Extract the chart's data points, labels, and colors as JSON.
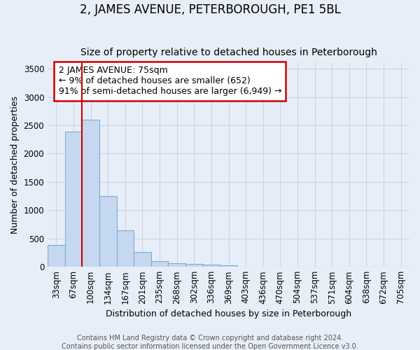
{
  "title": "2, JAMES AVENUE, PETERBOROUGH, PE1 5BL",
  "subtitle": "Size of property relative to detached houses in Peterborough",
  "xlabel": "Distribution of detached houses by size in Peterborough",
  "ylabel": "Number of detached properties",
  "footer_line1": "Contains HM Land Registry data © Crown copyright and database right 2024.",
  "footer_line2": "Contains public sector information licensed under the Open Government Licence v3.0.",
  "categories": [
    "33sqm",
    "67sqm",
    "100sqm",
    "134sqm",
    "167sqm",
    "201sqm",
    "235sqm",
    "268sqm",
    "302sqm",
    "336sqm",
    "369sqm",
    "403sqm",
    "436sqm",
    "470sqm",
    "504sqm",
    "537sqm",
    "571sqm",
    "604sqm",
    "638sqm",
    "672sqm",
    "705sqm"
  ],
  "values": [
    380,
    2390,
    2600,
    1250,
    640,
    260,
    100,
    60,
    55,
    45,
    30,
    8,
    5,
    3,
    2,
    1,
    1,
    0,
    0,
    0,
    0
  ],
  "bar_color": "#c5d8f0",
  "bar_edge_color": "#7aafd4",
  "grid_color": "#c8d4e8",
  "background_color": "#e8eef8",
  "annotation_line1": "2 JAMES AVENUE: 75sqm",
  "annotation_line2": "← 9% of detached houses are smaller (652)",
  "annotation_line3": "91% of semi-detached houses are larger (6,949) →",
  "annotation_box_color": "#ffffff",
  "annotation_border_color": "#cc0000",
  "property_line_color": "#cc0000",
  "ylim": [
    0,
    3600
  ],
  "yticks": [
    0,
    500,
    1000,
    1500,
    2000,
    2500,
    3000,
    3500
  ],
  "title_fontsize": 12,
  "subtitle_fontsize": 10,
  "xlabel_fontsize": 9,
  "ylabel_fontsize": 9,
  "tick_fontsize": 8.5,
  "annotation_fontsize": 9,
  "footer_fontsize": 7
}
